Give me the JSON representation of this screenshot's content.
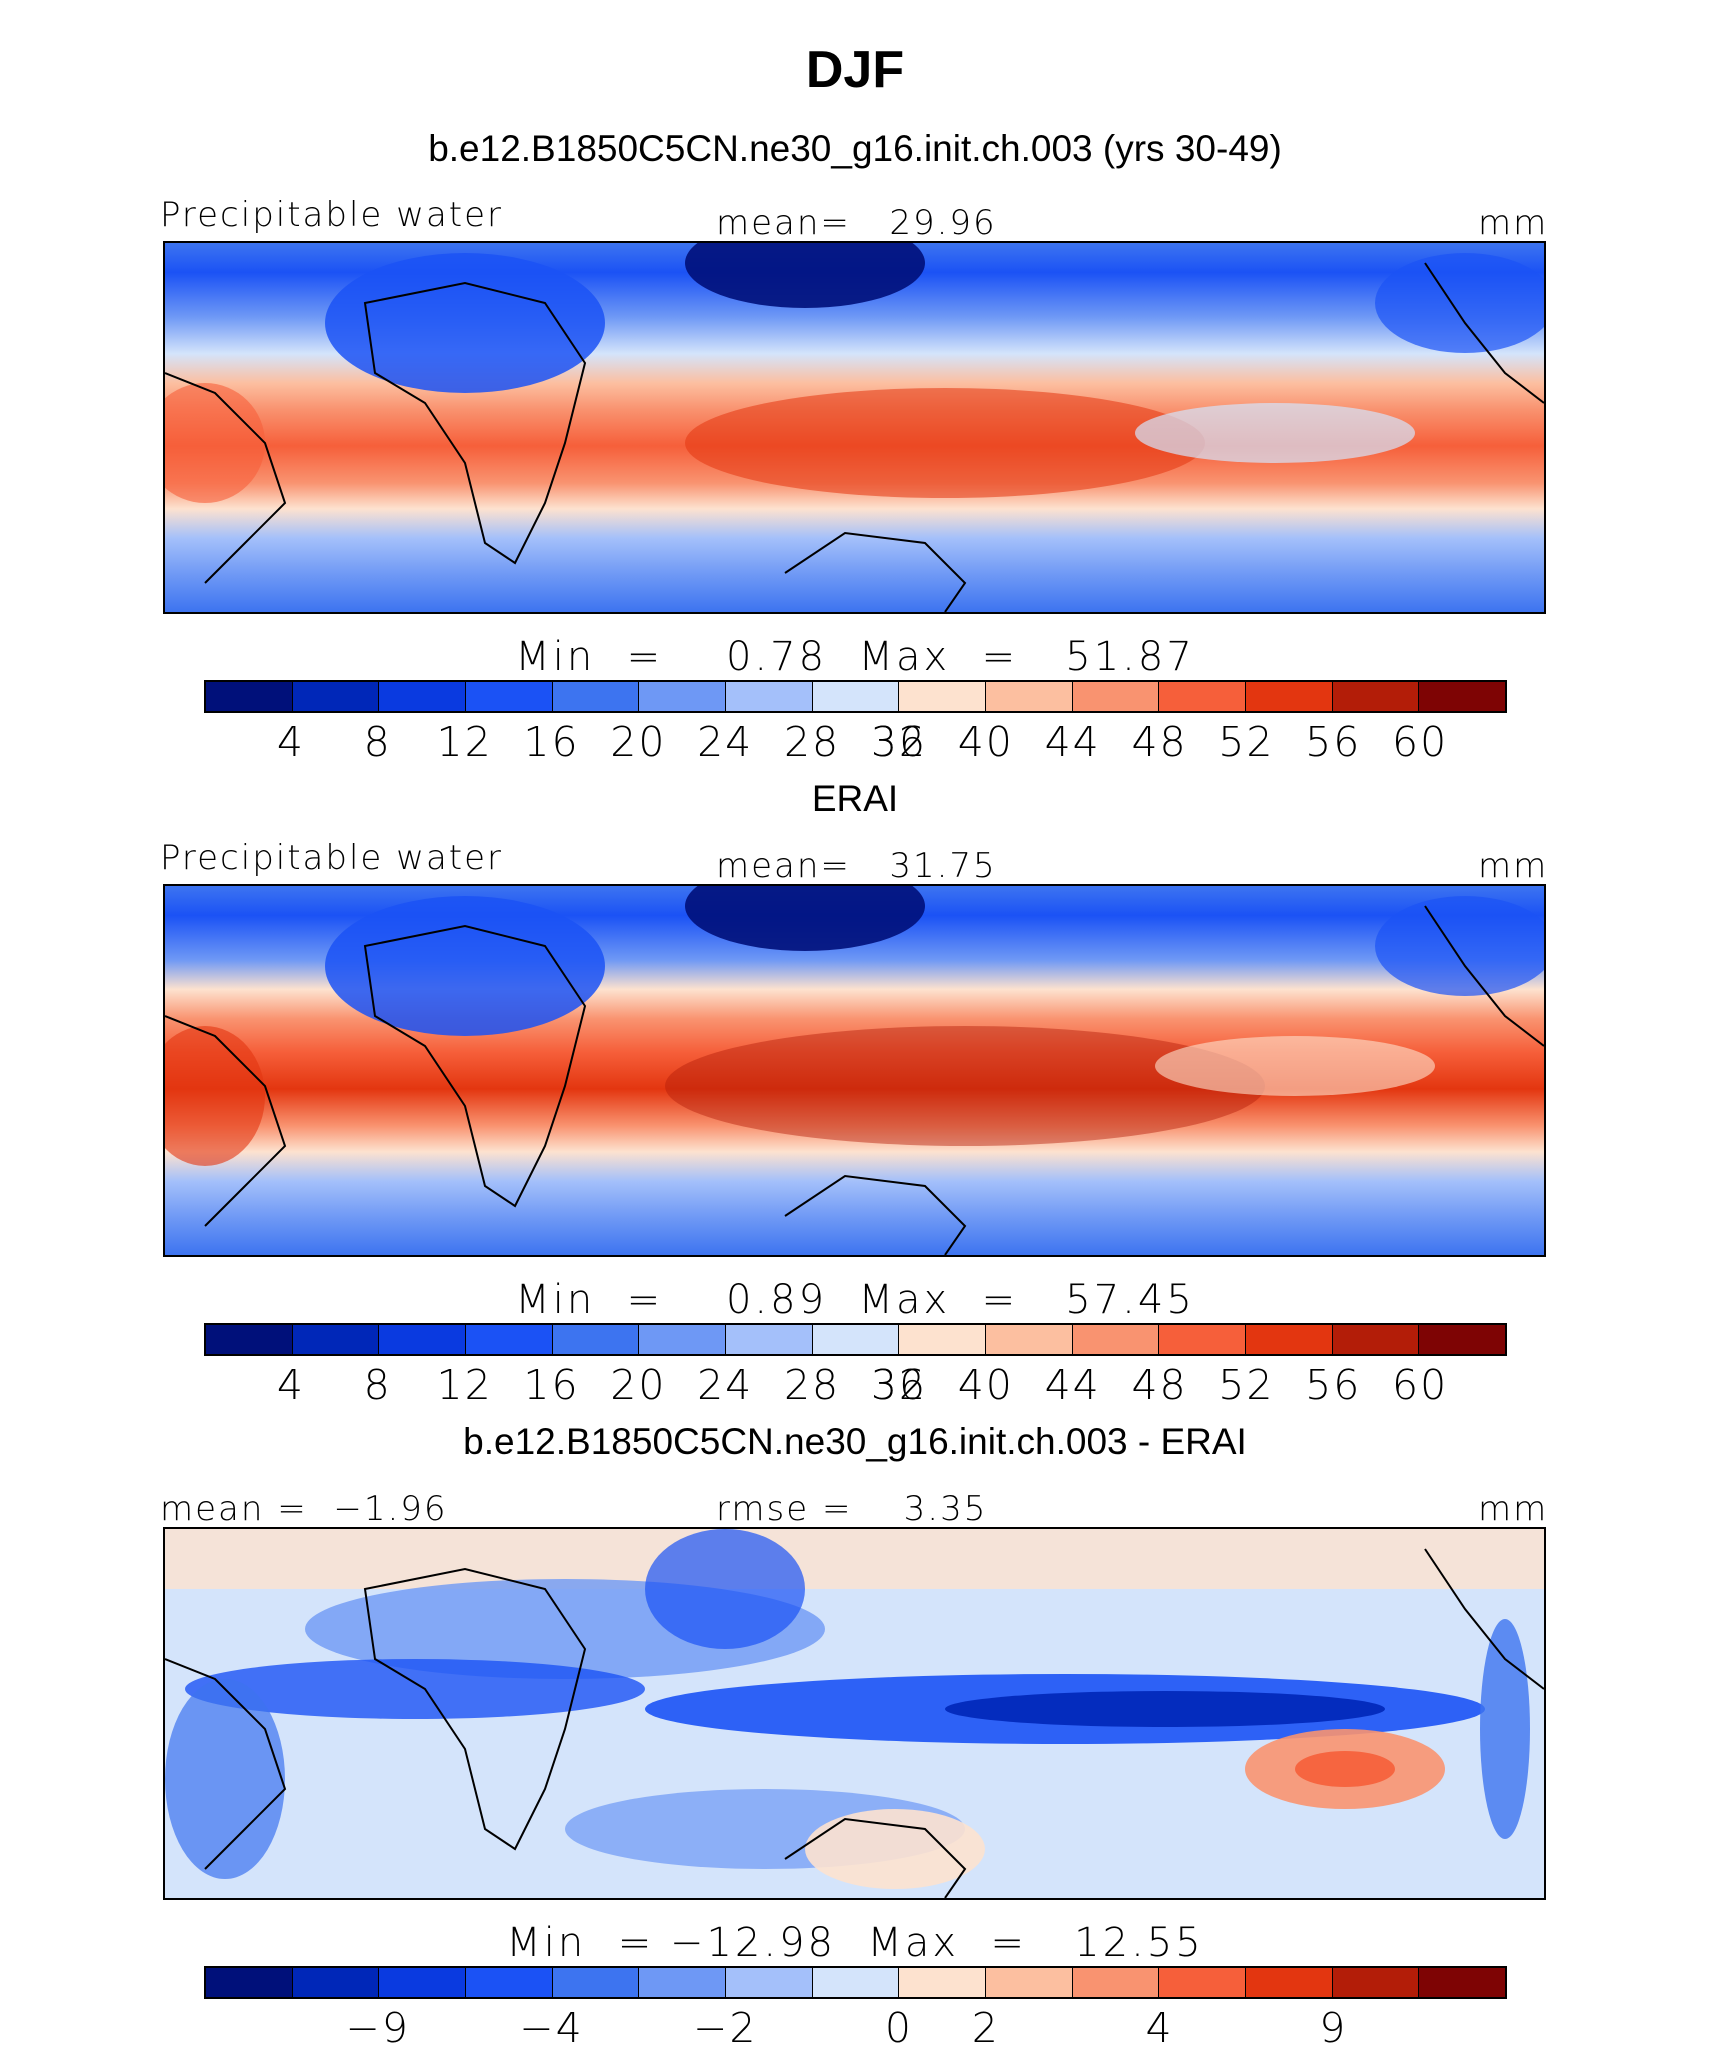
{
  "title": "DJF",
  "chart_data": [
    {
      "type": "heatmap",
      "subtitle": "b.e12.B1850C5CN.ne30_g16.init.ch.003 (yrs 30-49)",
      "left_label": "Precipitable water",
      "center_label": "mean=   29.96",
      "units": "mm",
      "min_max": "Min  =    0.78  Max  =   51.87",
      "mean": 29.96,
      "min": 0.78,
      "max": 51.87,
      "colorbar_ticks": [
        "4",
        "8",
        "12",
        "16",
        "20",
        "24",
        "28",
        "32",
        "36",
        "40",
        "44",
        "48",
        "52",
        "56",
        "60"
      ],
      "colorbar_colors": [
        "#00107a",
        "#0027b8",
        "#0a3ae0",
        "#1b52f5",
        "#3d74f0",
        "#6e98f5",
        "#a4c0fa",
        "#d4e4fb",
        "#fde2cf",
        "#fcbfa0",
        "#f99370",
        "#f65f3a",
        "#e33610",
        "#b31d08",
        "#7e0404"
      ]
    },
    {
      "type": "heatmap",
      "subtitle": "ERAI",
      "left_label": "Precipitable water",
      "center_label": "mean=   31.75",
      "units": "mm",
      "min_max": "Min  =    0.89  Max  =   57.45",
      "mean": 31.75,
      "min": 0.89,
      "max": 57.45,
      "colorbar_ticks": [
        "4",
        "8",
        "12",
        "16",
        "20",
        "24",
        "28",
        "32",
        "36",
        "40",
        "44",
        "48",
        "52",
        "56",
        "60"
      ],
      "colorbar_colors": [
        "#00107a",
        "#0027b8",
        "#0a3ae0",
        "#1b52f5",
        "#3d74f0",
        "#6e98f5",
        "#a4c0fa",
        "#d4e4fb",
        "#fde2cf",
        "#fcbfa0",
        "#f99370",
        "#f65f3a",
        "#e33610",
        "#b31d08",
        "#7e0404"
      ]
    },
    {
      "type": "heatmap",
      "subtitle": "b.e12.B1850C5CN.ne30_g16.init.ch.003 - ERAI",
      "left_label": "mean =  −1.96",
      "center_label": "rmse =    3.35",
      "units": "mm",
      "min_max": "Min  = −12.98  Max  =   12.55",
      "mean": -1.96,
      "rmse": 3.35,
      "min": -12.98,
      "max": 12.55,
      "colorbar_ticks": [
        "−9",
        "−4",
        "−2",
        "0",
        "2",
        "4",
        "9"
      ],
      "colorbar_colors": [
        "#00107a",
        "#0027b8",
        "#0a3ae0",
        "#1b52f5",
        "#3d74f0",
        "#6e98f5",
        "#a4c0fa",
        "#d4e4fb",
        "#fde2cf",
        "#fcbfa0",
        "#f99370",
        "#f65f3a",
        "#e33610",
        "#b31d08",
        "#7e0404"
      ]
    }
  ]
}
